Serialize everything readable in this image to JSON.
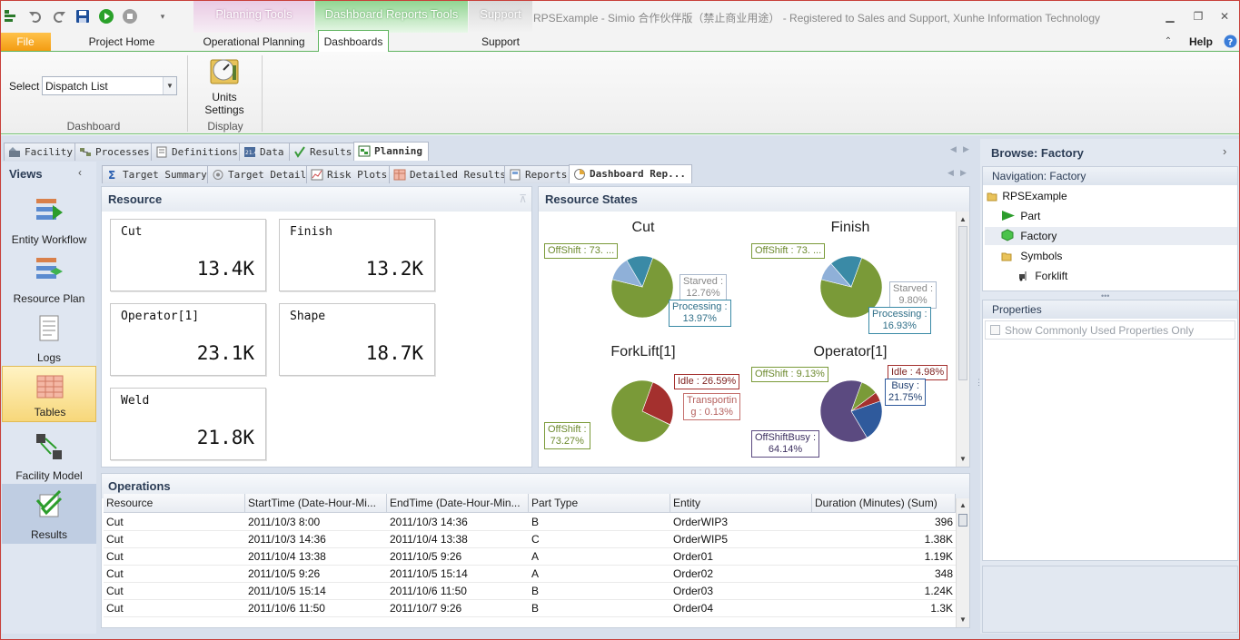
{
  "window": {
    "title": "RPSExample - Simio 合作伙伴版（禁止商业用途） - Registered to Sales and Support, Xunhe Information Technology",
    "contextual_groups": [
      "Planning Tools",
      "Dashboard Reports Tools",
      "Support"
    ],
    "help": "Help"
  },
  "ribbon_tabs": {
    "file": "File",
    "project_home": "Project Home",
    "operational_planning": "Operational Planning",
    "dashboards": "Dashboards",
    "support": "Support"
  },
  "ribbon": {
    "select_label": "Select",
    "select_value": "Dispatch List",
    "units_settings": "Units\nSettings",
    "group_dashboard": "Dashboard",
    "group_display": "Display"
  },
  "top_tabs": [
    "Facility",
    "Processes",
    "Definitions",
    "Data",
    "Results",
    "Planning"
  ],
  "sub_tabs": [
    "Target Summary",
    "Target Detail",
    "Risk Plots",
    "Detailed Results",
    "Reports",
    "Dashboard Rep..."
  ],
  "views": {
    "title": "Views",
    "items": [
      "Entity Workflow",
      "Resource Plan",
      "Logs",
      "Tables",
      "Facility Model",
      "Results"
    ]
  },
  "resource_panel": {
    "title": "Resource",
    "kpis": [
      {
        "name": "Cut",
        "value": "13.4K"
      },
      {
        "name": "Finish",
        "value": "13.2K"
      },
      {
        "name": "Operator[1]",
        "value": "23.1K"
      },
      {
        "name": "Shape",
        "value": "18.7K"
      },
      {
        "name": "Weld",
        "value": "21.8K"
      }
    ]
  },
  "states_panel": {
    "title": "Resource States",
    "charts": [
      {
        "title": "Cut",
        "labels": [
          "OffShift : 73. ...",
          "Starved :\n12.76%",
          "Processing :\n13.97%"
        ],
        "slices": [
          {
            "name": "OffShift",
            "pct": 73.27,
            "color": "#7a9a38"
          },
          {
            "name": "Starved",
            "pct": 12.76,
            "color": "#8fb0d8"
          },
          {
            "name": "Processing",
            "pct": 13.97,
            "color": "#3a8aa6"
          }
        ]
      },
      {
        "title": "Finish",
        "labels": [
          "OffShift : 73. ...",
          "Starved :\n9.80%",
          "Processing :\n16.93%"
        ],
        "slices": [
          {
            "name": "OffShift",
            "pct": 73.27,
            "color": "#7a9a38"
          },
          {
            "name": "Starved",
            "pct": 9.8,
            "color": "#8fb0d8"
          },
          {
            "name": "Processing",
            "pct": 16.93,
            "color": "#3a8aa6"
          }
        ]
      },
      {
        "title": "ForkLift[1]",
        "labels": [
          "Idle : 26.59%",
          "Transportin\ng : 0.13%",
          "OffShift :\n73.27%"
        ],
        "slices": [
          {
            "name": "Idle",
            "pct": 26.59,
            "color": "#a4302e"
          },
          {
            "name": "Transporting",
            "pct": 0.13,
            "color": "#c46f6c"
          },
          {
            "name": "OffShift",
            "pct": 73.27,
            "color": "#7a9a38"
          }
        ]
      },
      {
        "title": "Operator[1]",
        "labels": [
          "OffShift : 9.13%",
          "Idle : 4.98%",
          "Busy :\n21.75%",
          "OffShiftBusy :\n64.14%"
        ],
        "slices": [
          {
            "name": "OffShift",
            "pct": 9.13,
            "color": "#7a9a38"
          },
          {
            "name": "Idle",
            "pct": 4.98,
            "color": "#a4302e"
          },
          {
            "name": "Busy",
            "pct": 21.75,
            "color": "#2f5a9c"
          },
          {
            "name": "OffShiftBusy",
            "pct": 64.14,
            "color": "#5b4a80"
          }
        ]
      }
    ]
  },
  "operations": {
    "title": "Operations",
    "columns": [
      "Resource",
      "StartTime (Date-Hour-Mi...",
      "EndTime (Date-Hour-Min...",
      "Part Type",
      "Entity",
      "Duration (Minutes) (Sum)"
    ],
    "rows": [
      [
        "Cut",
        "2011/10/3 8:00",
        "2011/10/3 14:36",
        "B",
        "OrderWIP3",
        "396"
      ],
      [
        "Cut",
        "2011/10/3 14:36",
        "2011/10/4 13:38",
        "C",
        "OrderWIP5",
        "1.38K"
      ],
      [
        "Cut",
        "2011/10/4 13:38",
        "2011/10/5 9:26",
        "A",
        "Order01",
        "1.19K"
      ],
      [
        "Cut",
        "2011/10/5 9:26",
        "2011/10/5 15:14",
        "A",
        "Order02",
        "348"
      ],
      [
        "Cut",
        "2011/10/5 15:14",
        "2011/10/6 11:50",
        "B",
        "Order03",
        "1.24K"
      ],
      [
        "Cut",
        "2011/10/6 11:50",
        "2011/10/7 9:26",
        "B",
        "Order04",
        "1.3K"
      ]
    ]
  },
  "browse": {
    "title": "Browse: Factory",
    "navigation": "Navigation: Factory",
    "tree": [
      "RPSExample",
      "Part",
      "Factory",
      "Symbols",
      "Forklift"
    ]
  },
  "properties": {
    "title": "Properties",
    "checkbox": "Show Commonly Used Properties Only"
  }
}
